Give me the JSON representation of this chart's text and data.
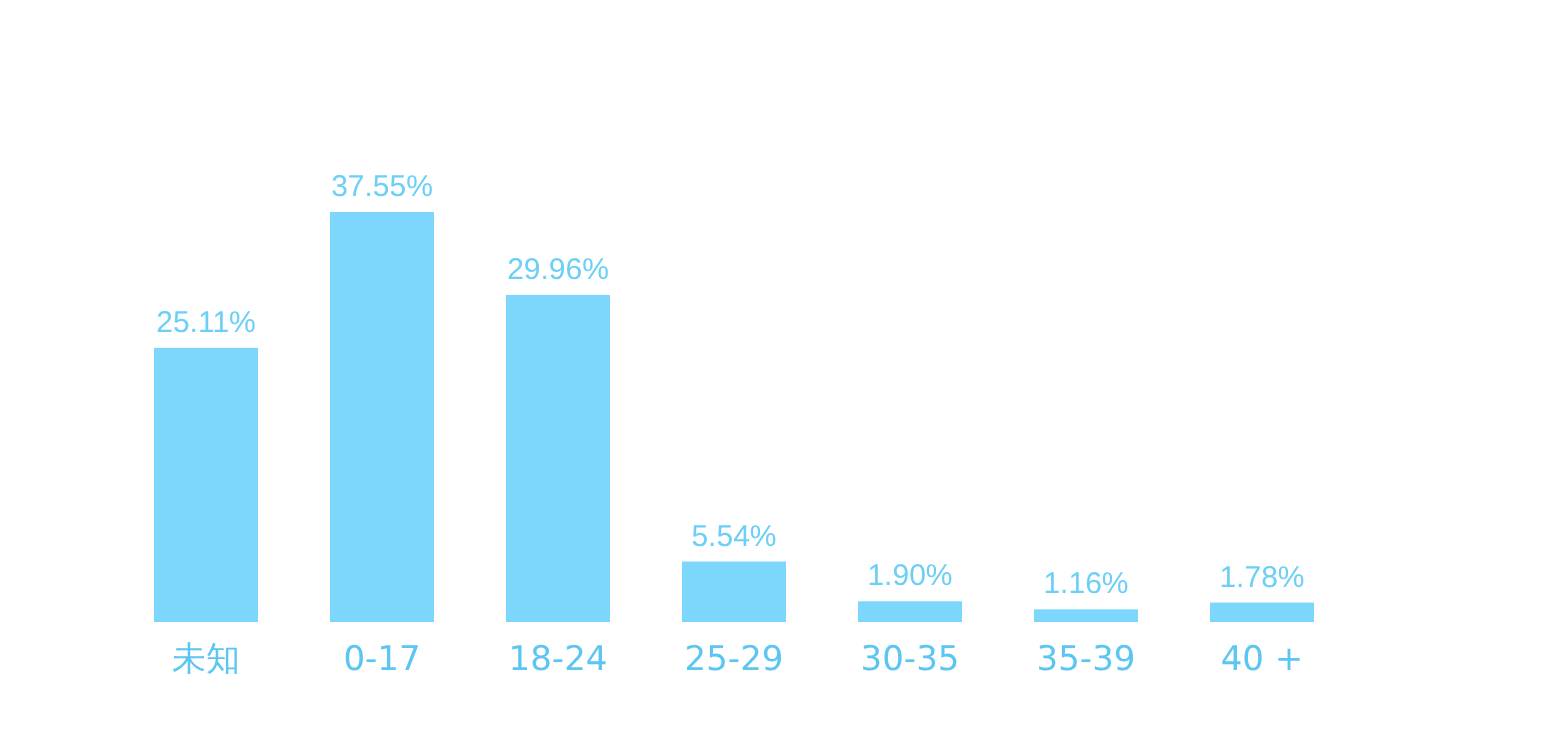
{
  "chart_data": {
    "type": "bar",
    "categories": [
      "未知",
      "0-17",
      "18-24",
      "25-29",
      "30-35",
      "35-39",
      "40 +"
    ],
    "values": [
      25.11,
      37.55,
      29.96,
      5.54,
      1.9,
      1.16,
      1.78
    ],
    "value_labels": [
      "25.11%",
      "37.55%",
      "29.96%",
      "5.54%",
      "1.90%",
      "1.16%",
      "1.78%"
    ],
    "color": "#7dd6fb"
  }
}
